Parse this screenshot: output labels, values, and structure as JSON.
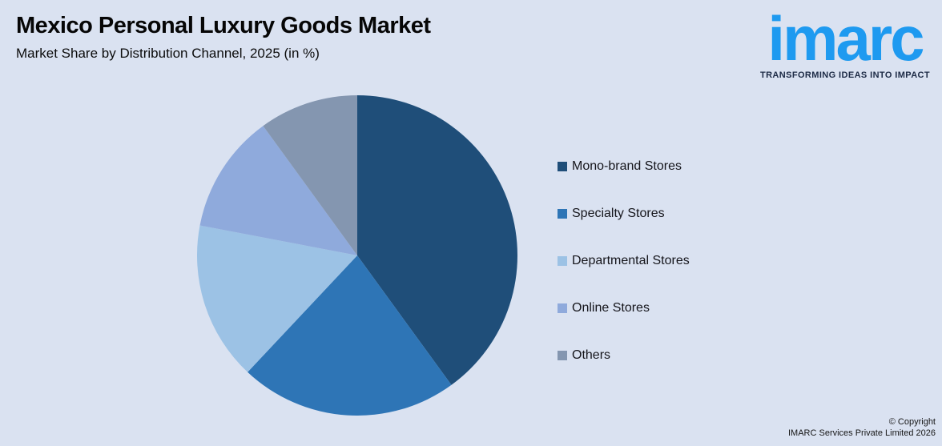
{
  "header": {
    "title": "Mexico Personal Luxury Goods Market",
    "subtitle": "Market Share by Distribution Channel, 2025 (in %)"
  },
  "logo": {
    "brand": "imarc",
    "tagline": "TRANSFORMING IDEAS INTO IMPACT",
    "brand_color": "#1e9af0",
    "tagline_color": "#1c2a45"
  },
  "chart_data": {
    "type": "pie",
    "title": "Mexico Personal Luxury Goods Market",
    "subtitle": "Market Share by Distribution Channel, 2025 (in %)",
    "categories": [
      "Mono-brand Stores",
      "Specialty Stores",
      "Departmental Stores",
      "Online Stores",
      "Others"
    ],
    "values": [
      40,
      22,
      16,
      12,
      10
    ],
    "unit": "%",
    "colors": [
      "#1f4e79",
      "#2e75b6",
      "#9cc2e5",
      "#8faadc",
      "#8496b0"
    ],
    "start_angle_deg": 0,
    "direction": "clockwise",
    "legend_position": "right",
    "data_labels_shown": false,
    "background": "#dae2f1"
  },
  "footer": {
    "copyright_line1": "© Copyright",
    "copyright_line2": "IMARC Services Private Limited 2026"
  }
}
